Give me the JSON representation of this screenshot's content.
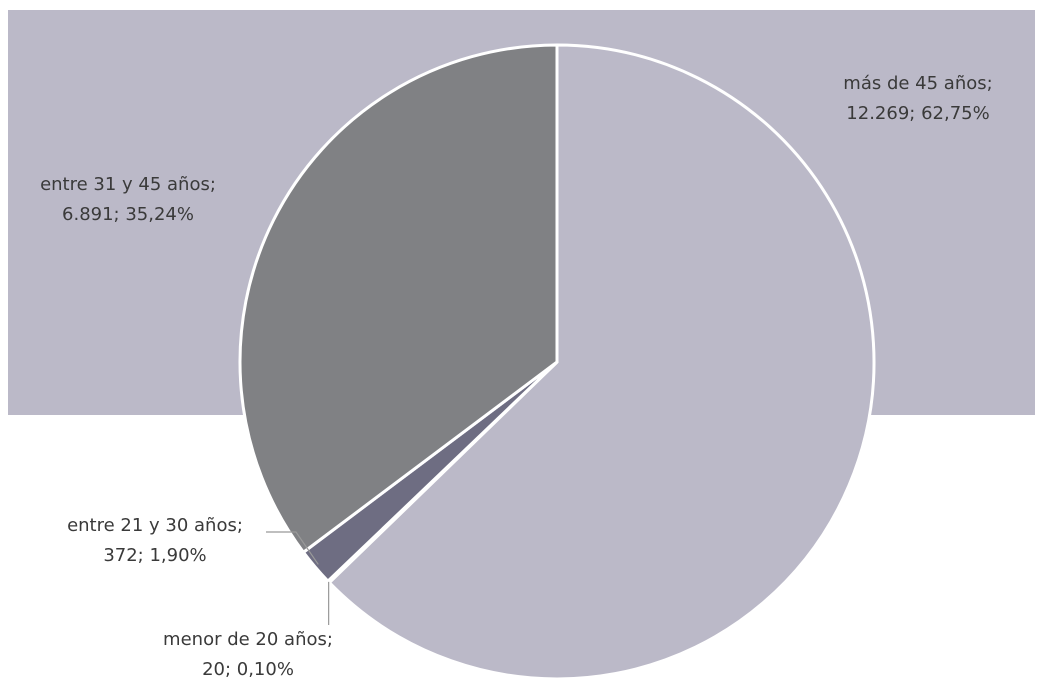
{
  "chart_data": {
    "type": "pie",
    "categories": [
      "más de 45 años;",
      "menor de 20 años;",
      "entre 21 y 30 años;",
      "entre 31 y 45 años;"
    ],
    "values": [
      12269,
      20,
      372,
      6891
    ],
    "value_labels": [
      "12.269; 62,75%",
      "20; 0,10%",
      "372; 1,90%",
      "6.891; 35,24%"
    ],
    "colors": [
      "#bbb9c8",
      "#5e5d73",
      "#6e6d82",
      "#808184"
    ]
  }
}
